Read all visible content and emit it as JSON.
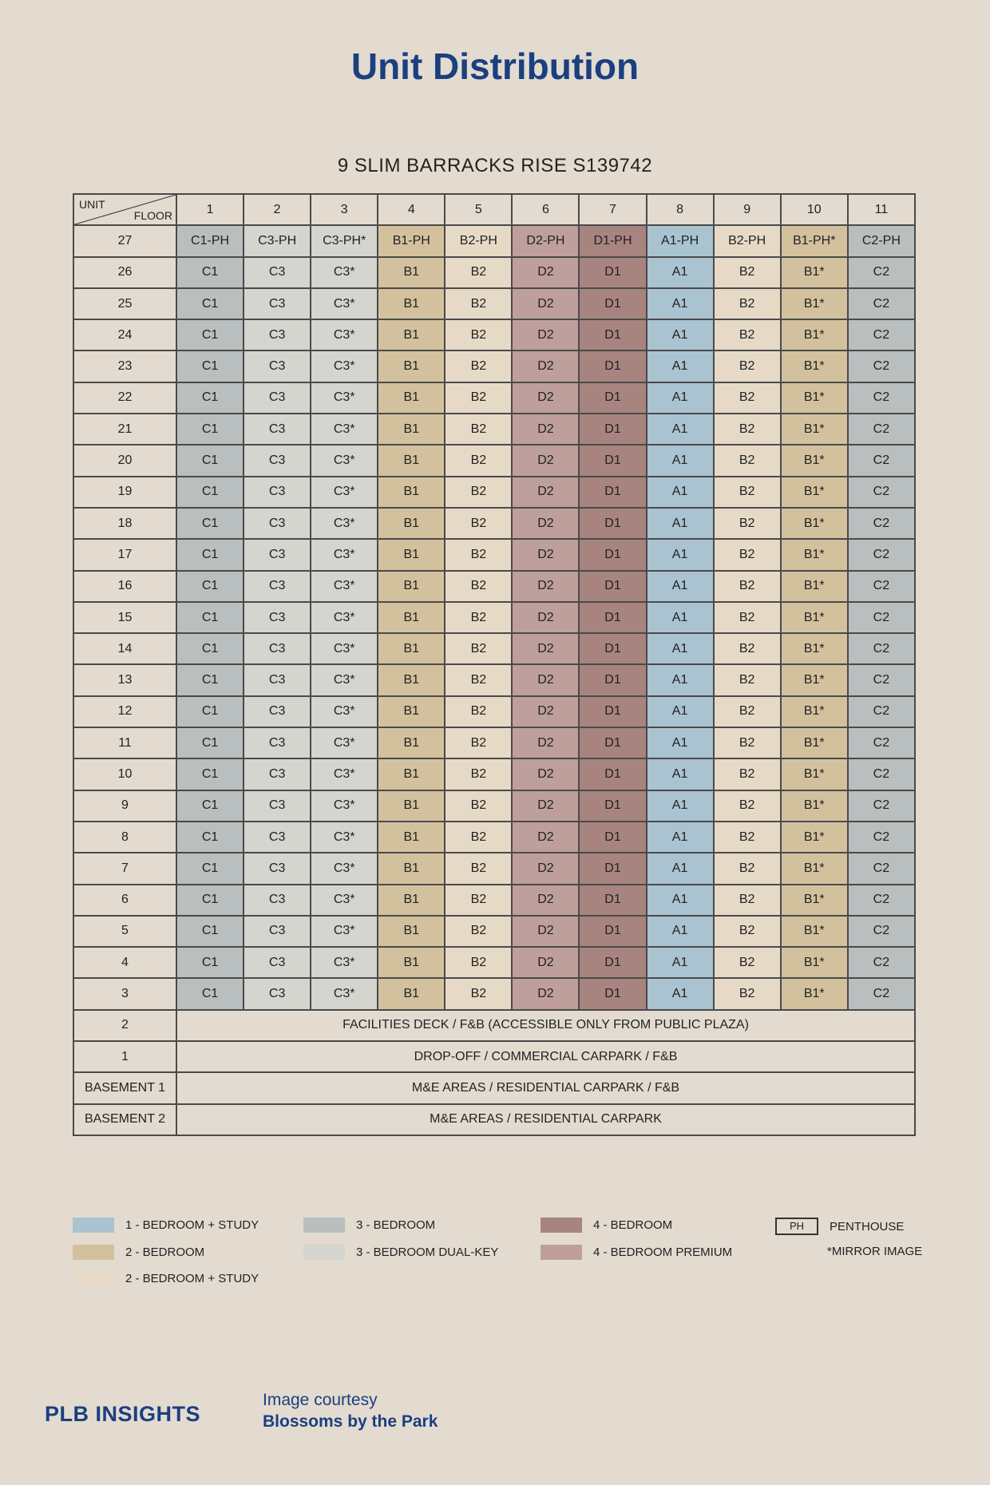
{
  "title": "Unit Distribution",
  "subtitle": "9 SLIM BARRACKS RISE S139742",
  "table": {
    "corner_unit": "UNIT",
    "corner_floor": "FLOOR",
    "unit_numbers": [
      "1",
      "2",
      "3",
      "4",
      "5",
      "6",
      "7",
      "8",
      "9",
      "10",
      "11"
    ],
    "unit_types": [
      "3br",
      "3brdk",
      "3brdk",
      "2br",
      "2brs",
      "4brp",
      "4br",
      "1brs",
      "2brs",
      "2br",
      "3br"
    ],
    "penthouse_row": {
      "floor": "27",
      "cells": [
        "C1-PH",
        "C3-PH",
        "C3-PH*",
        "B1-PH",
        "B2-PH",
        "D2-PH",
        "D1-PH",
        "A1-PH",
        "B2-PH",
        "B1-PH*",
        "C2-PH"
      ]
    },
    "typical_floors": [
      "26",
      "25",
      "24",
      "23",
      "22",
      "21",
      "20",
      "19",
      "18",
      "17",
      "16",
      "15",
      "14",
      "13",
      "12",
      "11",
      "10",
      "9",
      "8",
      "7",
      "6",
      "5",
      "4",
      "3"
    ],
    "typical_cells": [
      "C1",
      "C3",
      "C3*",
      "B1",
      "B2",
      "D2",
      "D1",
      "A1",
      "B2",
      "B1*",
      "C2"
    ],
    "lower_floors": [
      {
        "floor": "2",
        "text": "FACILITIES DECK / F&B (ACCESSIBLE ONLY FROM PUBLIC PLAZA)"
      },
      {
        "floor": "1",
        "text": "DROP-OFF / COMMERCIAL CARPARK / F&B"
      },
      {
        "floor": "BASEMENT 1",
        "text": "M&E AREAS / RESIDENTIAL CARPARK / F&B"
      },
      {
        "floor": "BASEMENT 2",
        "text": "M&E AREAS / RESIDENTIAL CARPARK"
      }
    ]
  },
  "colors": {
    "1brs": "#a9c3d1",
    "2br": "#d3c19e",
    "2brs": "#e6dac6",
    "3br": "#b9bfbe",
    "3brdk": "#d3d5ce",
    "4br": "#a88480",
    "4brp": "#bf9f9b",
    "accent": "#1b3f7f"
  },
  "legend": {
    "items": [
      {
        "type": "1brs",
        "label": "1 - BEDROOM + STUDY"
      },
      {
        "type": "2br",
        "label": "2 - BEDROOM"
      },
      {
        "type": "2brs",
        "label": "2 - BEDROOM + STUDY"
      },
      {
        "type": "3br",
        "label": "3 - BEDROOM"
      },
      {
        "type": "3brdk",
        "label": "3 - BEDROOM DUAL-KEY"
      },
      {
        "type": "4br",
        "label": "4 - BEDROOM"
      },
      {
        "type": "4brp",
        "label": "4 - BEDROOM PREMIUM"
      }
    ],
    "ph_box": "PH",
    "ph_label": "PENTHOUSE",
    "mirror_label": "*MIRROR IMAGE"
  },
  "footer": {
    "logo": "PLB INSIGHTS",
    "courtesy_line1": "Image courtesy",
    "courtesy_line2": "Blossoms by the Park"
  }
}
